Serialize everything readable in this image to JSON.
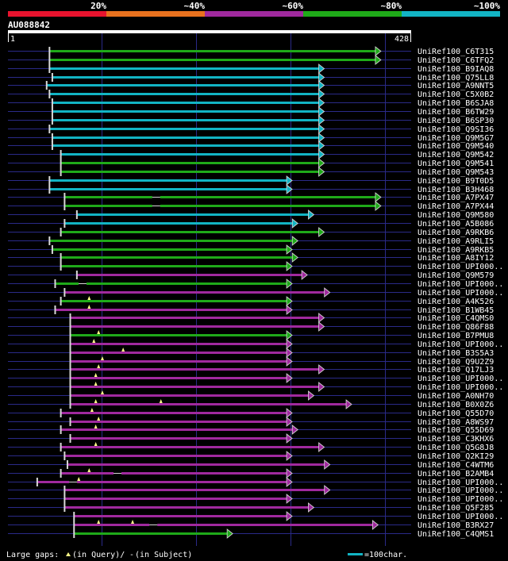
{
  "colors": {
    "background": "#000000",
    "red": "#e8132e",
    "orange": "#e8711e",
    "purple": "#a0299e",
    "green": "#1faa19",
    "cyan": "#12b4c4",
    "query": "#ffffff",
    "grid": "#2a2a88",
    "hit_end": "#d8d8d8",
    "gap": "#ffff88"
  },
  "chart_data": {
    "type": "alignment",
    "title": "AU088842",
    "identity_legend": [
      {
        "label": "20%",
        "color": "red"
      },
      {
        "label": "~40%",
        "color": "orange"
      },
      {
        "label": "~60%",
        "color": "purple"
      },
      {
        "label": "~80%",
        "color": "green"
      },
      {
        "label": "~100%",
        "color": "cyan"
      }
    ],
    "query": {
      "start_label": "1",
      "end_label": "428",
      "length": 428
    },
    "xlim": [
      1,
      428
    ],
    "gridlines": [
      100,
      200,
      300,
      400
    ],
    "hits": [
      {
        "name": "UniRef100_C6T315",
        "start": 45,
        "end": 396,
        "color": "green",
        "gaps": []
      },
      {
        "name": "UniRef100_C6TFQ2",
        "start": 45,
        "end": 396,
        "color": "green",
        "gaps": []
      },
      {
        "name": "UniRef100_B9IAQ8",
        "start": 45,
        "end": 336,
        "color": "cyan",
        "gaps": []
      },
      {
        "name": "UniRef100_Q75LL8",
        "start": 48,
        "end": 336,
        "color": "cyan",
        "gaps": []
      },
      {
        "name": "UniRef100_A9NNT5",
        "start": 42,
        "end": 336,
        "color": "cyan",
        "gaps": []
      },
      {
        "name": "UniRef100_C5X0B2",
        "start": 45,
        "end": 336,
        "color": "cyan",
        "gaps": []
      },
      {
        "name": "UniRef100_B6SJA8",
        "start": 48,
        "end": 336,
        "color": "cyan",
        "gaps": []
      },
      {
        "name": "UniRef100_B6TW29",
        "start": 48,
        "end": 336,
        "color": "cyan",
        "gaps": []
      },
      {
        "name": "UniRef100_B6SP30",
        "start": 48,
        "end": 336,
        "color": "cyan",
        "gaps": []
      },
      {
        "name": "UniRef100_Q9SI36",
        "start": 45,
        "end": 336,
        "color": "cyan",
        "gaps": []
      },
      {
        "name": "UniRef100_Q9M5G7",
        "start": 48,
        "end": 336,
        "color": "cyan",
        "gaps": []
      },
      {
        "name": "UniRef100_Q9M540",
        "start": 48,
        "end": 336,
        "color": "cyan",
        "gaps": []
      },
      {
        "name": "UniRef100_Q9M542",
        "start": 57,
        "end": 336,
        "color": "cyan",
        "gaps": []
      },
      {
        "name": "UniRef100_Q9M541",
        "start": 57,
        "end": 336,
        "color": "green",
        "gaps": []
      },
      {
        "name": "UniRef100_Q9M543",
        "start": 57,
        "end": 336,
        "color": "green",
        "gaps": []
      },
      {
        "name": "UniRef100_B9T0D5",
        "start": 45,
        "end": 302,
        "color": "cyan",
        "gaps": []
      },
      {
        "name": "UniRef100_B3H468",
        "start": 45,
        "end": 302,
        "color": "cyan",
        "gaps": []
      },
      {
        "name": "UniRef100_A7PX47",
        "start": 61,
        "end": 396,
        "color": "green",
        "gaps": [
          {
            "type": "subject",
            "pos": 158
          }
        ]
      },
      {
        "name": "UniRef100_A7PX44",
        "start": 61,
        "end": 396,
        "color": "green",
        "gaps": [
          {
            "type": "subject",
            "pos": 158
          }
        ]
      },
      {
        "name": "UniRef100_Q9M580",
        "start": 74,
        "end": 325,
        "color": "cyan",
        "gaps": []
      },
      {
        "name": "UniRef100_A5B086",
        "start": 61,
        "end": 308,
        "color": "cyan",
        "gaps": []
      },
      {
        "name": "UniRef100_A9RKB6",
        "start": 57,
        "end": 336,
        "color": "green",
        "gaps": []
      },
      {
        "name": "UniRef100_A9RLI5",
        "start": 45,
        "end": 308,
        "color": "green",
        "gaps": []
      },
      {
        "name": "UniRef100_A9RKB5",
        "start": 48,
        "end": 302,
        "color": "green",
        "gaps": []
      },
      {
        "name": "UniRef100_A8IY12",
        "start": 57,
        "end": 308,
        "color": "green",
        "gaps": []
      },
      {
        "name": "UniRef100_UPI000..",
        "start": 57,
        "end": 302,
        "color": "green",
        "gaps": []
      },
      {
        "name": "UniRef100_Q9M579",
        "start": 74,
        "end": 318,
        "color": "purple",
        "gaps": []
      },
      {
        "name": "UniRef100_UPI000..",
        "start": 51,
        "end": 302,
        "color": "green",
        "gaps": [
          {
            "type": "subject",
            "pos": 80
          }
        ]
      },
      {
        "name": "UniRef100_UPI000..",
        "start": 61,
        "end": 342,
        "color": "purple",
        "gaps": []
      },
      {
        "name": "UniRef100_A4K526",
        "start": 57,
        "end": 302,
        "color": "green",
        "gaps": [
          {
            "type": "query",
            "pos": 87
          }
        ]
      },
      {
        "name": "UniRef100_B1WB45",
        "start": 51,
        "end": 302,
        "color": "purple",
        "gaps": [
          {
            "type": "query",
            "pos": 87
          }
        ]
      },
      {
        "name": "UniRef100_C4QMS0",
        "start": 67,
        "end": 336,
        "color": "purple",
        "gaps": []
      },
      {
        "name": "UniRef100_Q86F88",
        "start": 67,
        "end": 336,
        "color": "purple",
        "gaps": []
      },
      {
        "name": "UniRef100_B7PMU8",
        "start": 67,
        "end": 302,
        "color": "green",
        "gaps": [
          {
            "type": "query",
            "pos": 97
          }
        ]
      },
      {
        "name": "UniRef100_UPI000..",
        "start": 67,
        "end": 302,
        "color": "purple",
        "gaps": [
          {
            "type": "query",
            "pos": 92
          }
        ]
      },
      {
        "name": "UniRef100_B3S5A3",
        "start": 67,
        "end": 302,
        "color": "purple",
        "gaps": [
          {
            "type": "query",
            "pos": 123
          }
        ]
      },
      {
        "name": "UniRef100_Q9U2Z9",
        "start": 67,
        "end": 302,
        "color": "purple",
        "gaps": [
          {
            "type": "query",
            "pos": 101
          }
        ]
      },
      {
        "name": "UniRef100_Q17LJ3",
        "start": 67,
        "end": 336,
        "color": "purple",
        "gaps": [
          {
            "type": "query",
            "pos": 97
          }
        ]
      },
      {
        "name": "UniRef100_UPI000..",
        "start": 67,
        "end": 302,
        "color": "purple",
        "gaps": [
          {
            "type": "query",
            "pos": 94
          }
        ]
      },
      {
        "name": "UniRef100_UPI000..",
        "start": 67,
        "end": 336,
        "color": "purple",
        "gaps": [
          {
            "type": "query",
            "pos": 94
          }
        ]
      },
      {
        "name": "UniRef100_A0NH70",
        "start": 67,
        "end": 325,
        "color": "purple",
        "gaps": [
          {
            "type": "query",
            "pos": 101
          }
        ]
      },
      {
        "name": "UniRef100_B0X0Z6",
        "start": 67,
        "end": 365,
        "color": "purple",
        "gaps": [
          {
            "type": "query",
            "pos": 94
          },
          {
            "type": "query",
            "pos": 163
          }
        ]
      },
      {
        "name": "UniRef100_Q55D70",
        "start": 57,
        "end": 302,
        "color": "purple",
        "gaps": [
          {
            "type": "query",
            "pos": 90
          }
        ]
      },
      {
        "name": "UniRef100_A8WS97",
        "start": 67,
        "end": 302,
        "color": "purple",
        "gaps": [
          {
            "type": "query",
            "pos": 97
          }
        ]
      },
      {
        "name": "UniRef100_Q55D69",
        "start": 57,
        "end": 308,
        "color": "purple",
        "gaps": [
          {
            "type": "query",
            "pos": 94
          }
        ]
      },
      {
        "name": "UniRef100_C3KHX6",
        "start": 67,
        "end": 302,
        "color": "purple",
        "gaps": []
      },
      {
        "name": "UniRef100_Q5G8J8",
        "start": 57,
        "end": 336,
        "color": "purple",
        "gaps": [
          {
            "type": "query",
            "pos": 94
          }
        ]
      },
      {
        "name": "UniRef100_Q2KI29",
        "start": 61,
        "end": 302,
        "color": "purple",
        "gaps": []
      },
      {
        "name": "UniRef100_C4WTM6",
        "start": 64,
        "end": 342,
        "color": "purple",
        "gaps": []
      },
      {
        "name": "UniRef100_B2AMB4",
        "start": 57,
        "end": 302,
        "color": "purple",
        "gaps": [
          {
            "type": "query",
            "pos": 87
          },
          {
            "type": "subject",
            "pos": 117
          }
        ]
      },
      {
        "name": "UniRef100_UPI000..",
        "start": 32,
        "end": 302,
        "color": "purple",
        "gaps": [
          {
            "type": "query",
            "pos": 76
          },
          {
            "type": "subject",
            "pos": 70
          }
        ]
      },
      {
        "name": "UniRef100_UPI000..",
        "start": 61,
        "end": 342,
        "color": "purple",
        "gaps": []
      },
      {
        "name": "UniRef100_UPI000..",
        "start": 61,
        "end": 302,
        "color": "purple",
        "gaps": []
      },
      {
        "name": "UniRef100_Q5F285",
        "start": 61,
        "end": 325,
        "color": "purple",
        "gaps": []
      },
      {
        "name": "UniRef100_UPI000..",
        "start": 71,
        "end": 302,
        "color": "purple",
        "gaps": []
      },
      {
        "name": "UniRef100_B3RX27",
        "start": 71,
        "end": 393,
        "color": "purple",
        "gaps": [
          {
            "type": "query",
            "pos": 97
          },
          {
            "type": "query",
            "pos": 133
          },
          {
            "type": "subject",
            "pos": 155
          }
        ]
      },
      {
        "name": "UniRef100_C4QMS1",
        "start": 71,
        "end": 239,
        "color": "green",
        "gaps": []
      }
    ],
    "footer": {
      "large_gaps_label": "Large gaps:",
      "query_gap_label": "(in Query)/",
      "subject_gap_symbol": "-",
      "subject_gap_label": "(in Subject)",
      "scale_label": "=100char."
    }
  }
}
